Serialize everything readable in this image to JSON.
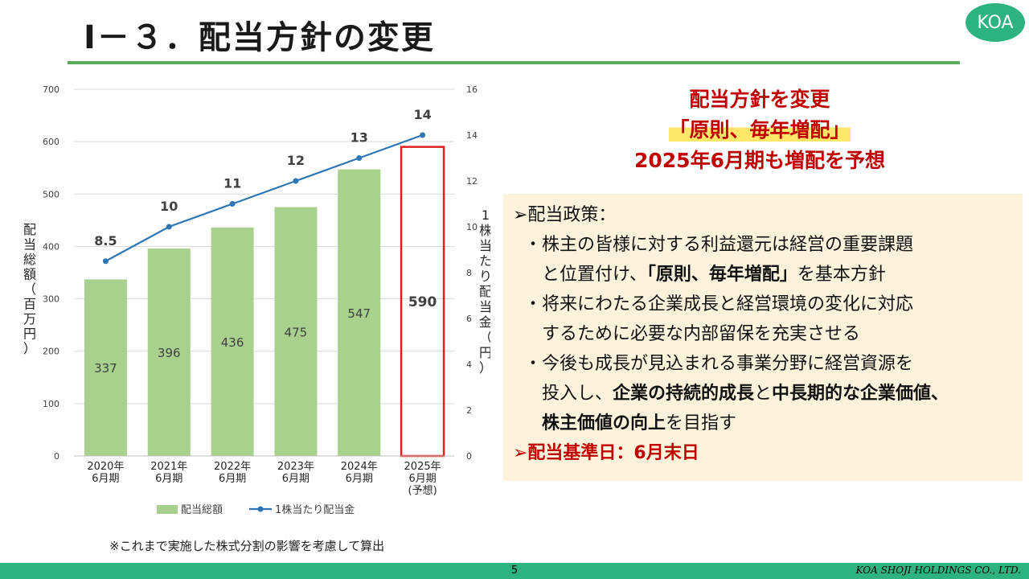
{
  "slide": {
    "title": "Ⅰ－３．配当方針の変更",
    "logo": "KOA",
    "page_number": "5",
    "company": "KOA SHOJI HOLDINGS CO., LTD.",
    "footnote": "※これまで実施した株式分割の影響を考慮して算出"
  },
  "headline": {
    "line1": "配当方針を変更",
    "line2": "「原則、毎年増配」",
    "line3": "2025年6月期も増配を予想"
  },
  "policy": {
    "heading": "➢配当政策：",
    "b1_l1": "・株主の皆様に対する利益還元は経営の重要課題",
    "b1_l2a": "と位置付け、",
    "b1_l2b": "「原則、毎年増配」",
    "b1_l2c": "を基本方針",
    "b2_l1": "・将来にわたる企業成長と経営環境の変化に対応",
    "b2_l2": "するために必要な内部留保を充実させる",
    "b3_l1": "・今後も成長が見込まれる事業分野に経営資源を",
    "b3_l2a": "投入し、",
    "b3_l2b": "企業の持続的成長",
    "b3_l2c": "と",
    "b3_l2d": "中長期的な企業価値、",
    "b3_l3a": "株主価値の向上",
    "b3_l3b": "を目指す",
    "record_date": "➢配当基準日：6月末日"
  },
  "chart_data": {
    "type": "bar",
    "categories": [
      [
        "2020年",
        "6月期"
      ],
      [
        "2021年",
        "6月期"
      ],
      [
        "2022年",
        "6月期"
      ],
      [
        "2023年",
        "6月期"
      ],
      [
        "2024年",
        "6月期"
      ],
      [
        "2025年",
        "6月期",
        "(予想)"
      ]
    ],
    "series": [
      {
        "name": "配当総額",
        "type": "bar",
        "axis": "left",
        "values": [
          337,
          396,
          436,
          475,
          547,
          590
        ],
        "color": "#a9d18e",
        "forecast_index": 5
      },
      {
        "name": "1株当たり配当金",
        "type": "line",
        "axis": "right",
        "values": [
          8.5,
          10,
          11,
          12,
          13,
          14
        ],
        "labels": [
          "8.5",
          "10",
          "11",
          "12",
          "13",
          "14"
        ],
        "color": "#2e75b6"
      }
    ],
    "ylabel_left": "配当総額（百万円）",
    "ylabel_right": "1株当たり配当金（円）",
    "ylim_left": [
      0,
      700
    ],
    "yticks_left": [
      0,
      100,
      200,
      300,
      400,
      500,
      600,
      700
    ],
    "ylim_right": [
      0,
      16
    ],
    "yticks_right": [
      0,
      2,
      4,
      6,
      8,
      10,
      12,
      14,
      16
    ],
    "forecast_outline_color": "#e02020",
    "grid": true,
    "legend_position": "bottom"
  }
}
